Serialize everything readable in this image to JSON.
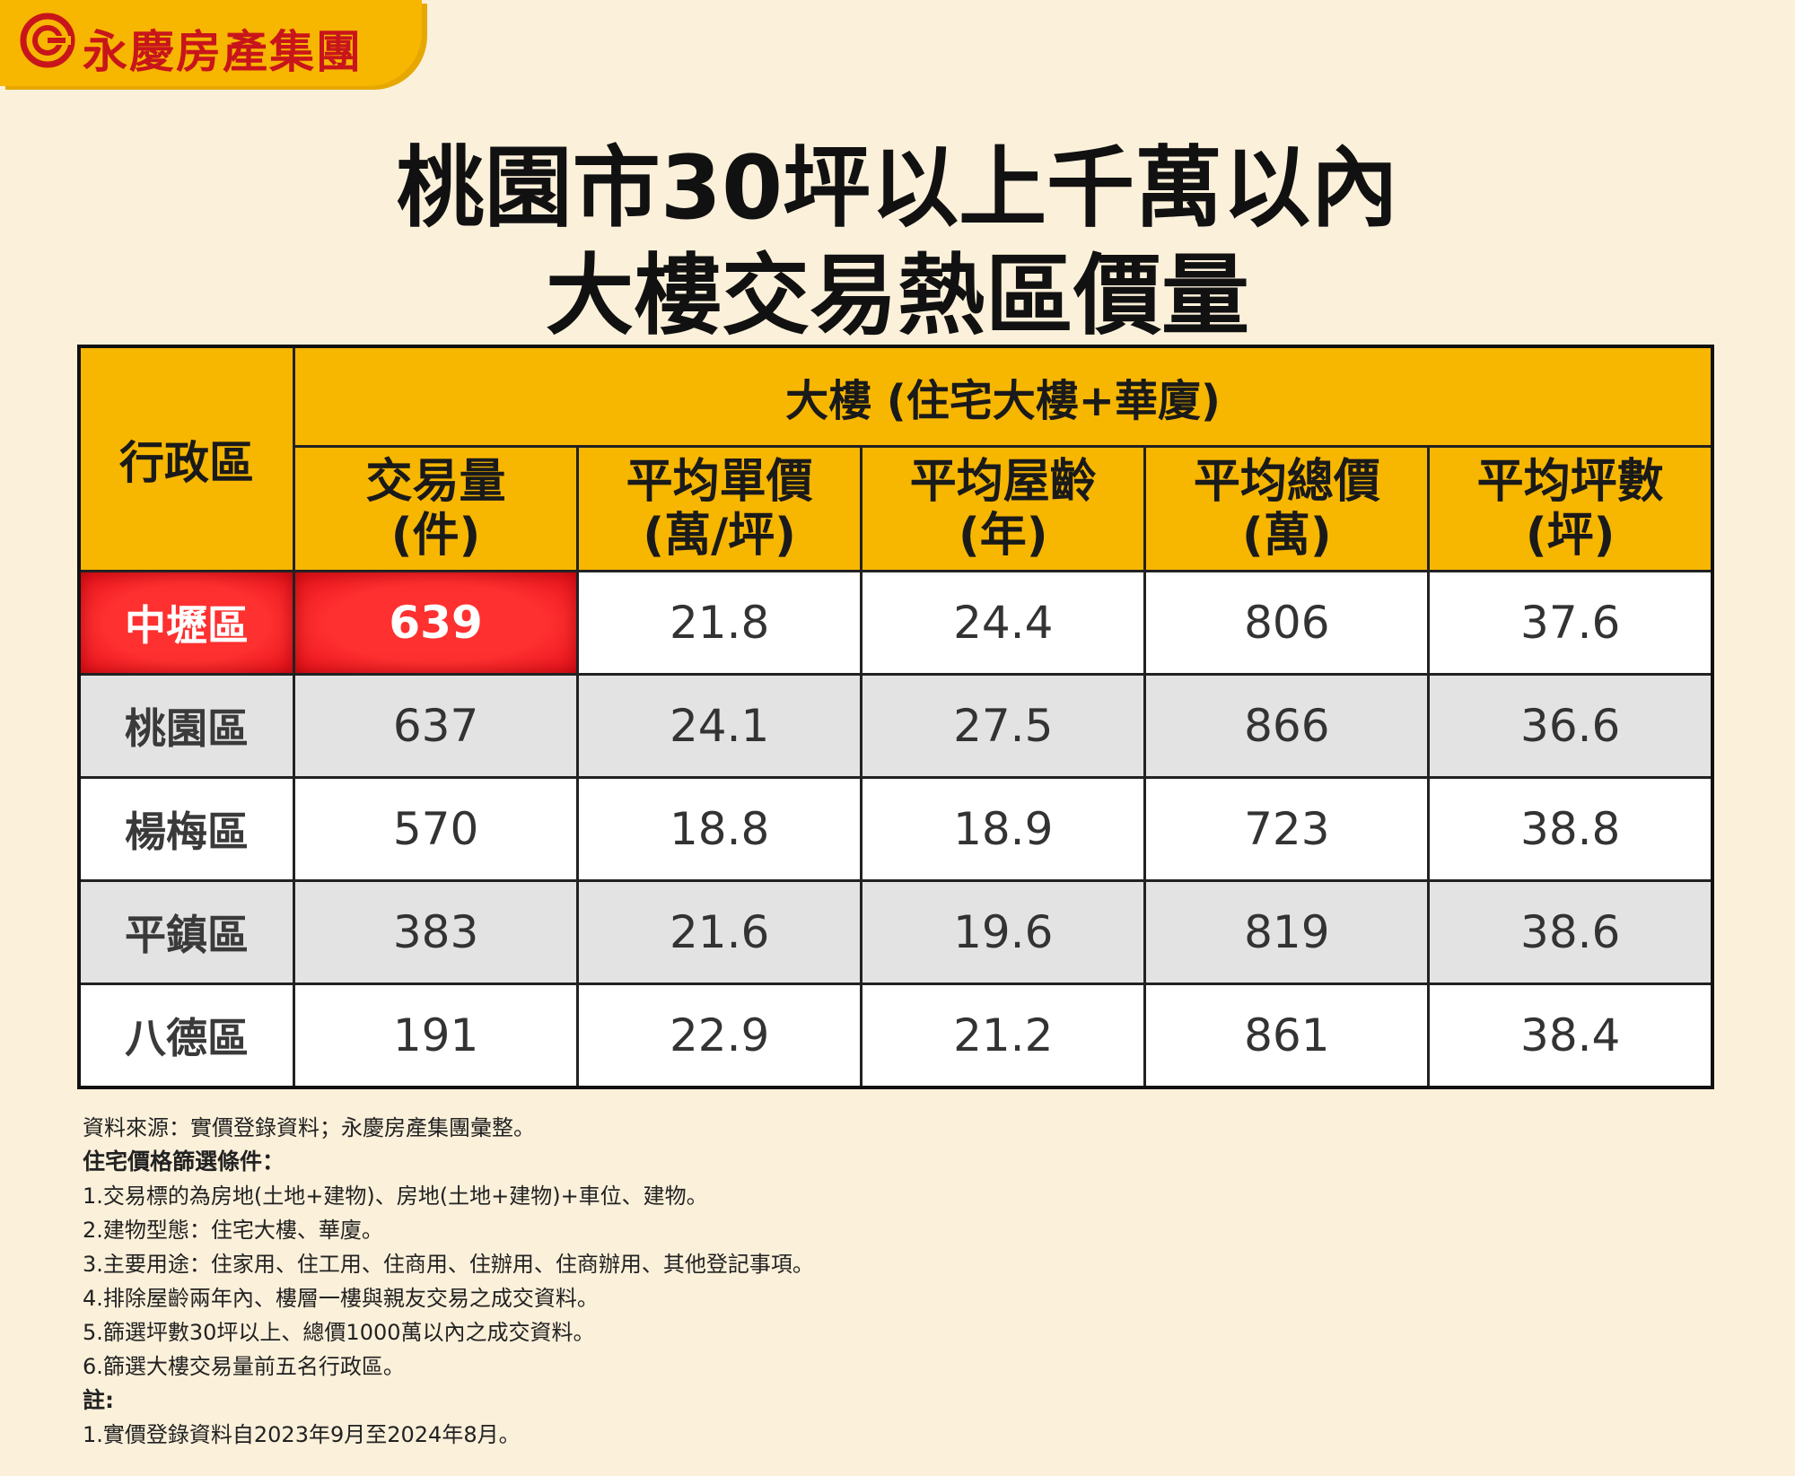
{
  "logo": {
    "text": "永慶房產集團",
    "icon": "yungching-logo-icon",
    "color": "#c8151b"
  },
  "title": {
    "line1": "桃園市30坪以上千萬以內",
    "line2": "大樓交易熱區價量"
  },
  "colors": {
    "header_bg": "#f7b600",
    "highlight": "#ff2a2a",
    "background": "#fbf0da",
    "alt_row": "#e3e3e3"
  },
  "chart_data": {
    "type": "table",
    "header": {
      "district": "行政區",
      "group": "大樓 (住宅大樓+華廈)",
      "columns": [
        {
          "line1": "交易量",
          "line2": "(件)"
        },
        {
          "line1": "平均單價",
          "line2": "(萬/坪)"
        },
        {
          "line1": "平均屋齡",
          "line2": "(年)"
        },
        {
          "line1": "平均總價",
          "line2": "(萬)"
        },
        {
          "line1": "平均坪數",
          "line2": "(坪)"
        }
      ]
    },
    "rows": [
      {
        "district": "中壢區",
        "values": [
          "639",
          "21.8",
          "24.4",
          "806",
          "37.6"
        ]
      },
      {
        "district": "桃園區",
        "values": [
          "637",
          "24.1",
          "27.5",
          "866",
          "36.6"
        ]
      },
      {
        "district": "楊梅區",
        "values": [
          "570",
          "18.8",
          "18.9",
          "723",
          "38.8"
        ]
      },
      {
        "district": "平鎮區",
        "values": [
          "383",
          "21.6",
          "19.6",
          "819",
          "38.6"
        ]
      },
      {
        "district": "八德區",
        "values": [
          "191",
          "22.9",
          "21.2",
          "861",
          "38.4"
        ]
      }
    ]
  },
  "notes": {
    "source": "資料來源：實價登錄資料；永慶房產集團彙整。",
    "criteria_title": "住宅價格篩選條件：",
    "criteria": [
      "1.交易標的為房地(土地+建物)、房地(土地+建物)+車位、建物。",
      "2.建物型態：住宅大樓、華廈。",
      "3.主要用途：住家用、住工用、住商用、住辦用、住商辦用、其他登記事項。",
      "4.排除屋齡兩年內、樓層一樓與親友交易之成交資料。",
      "5.篩選坪數30坪以上、總價1000萬以內之成交資料。",
      "6.篩選大樓交易量前五名行政區。"
    ],
    "remark_title": "註:",
    "remarks": [
      "1.實價登錄資料自2023年9月至2024年8月。"
    ]
  }
}
